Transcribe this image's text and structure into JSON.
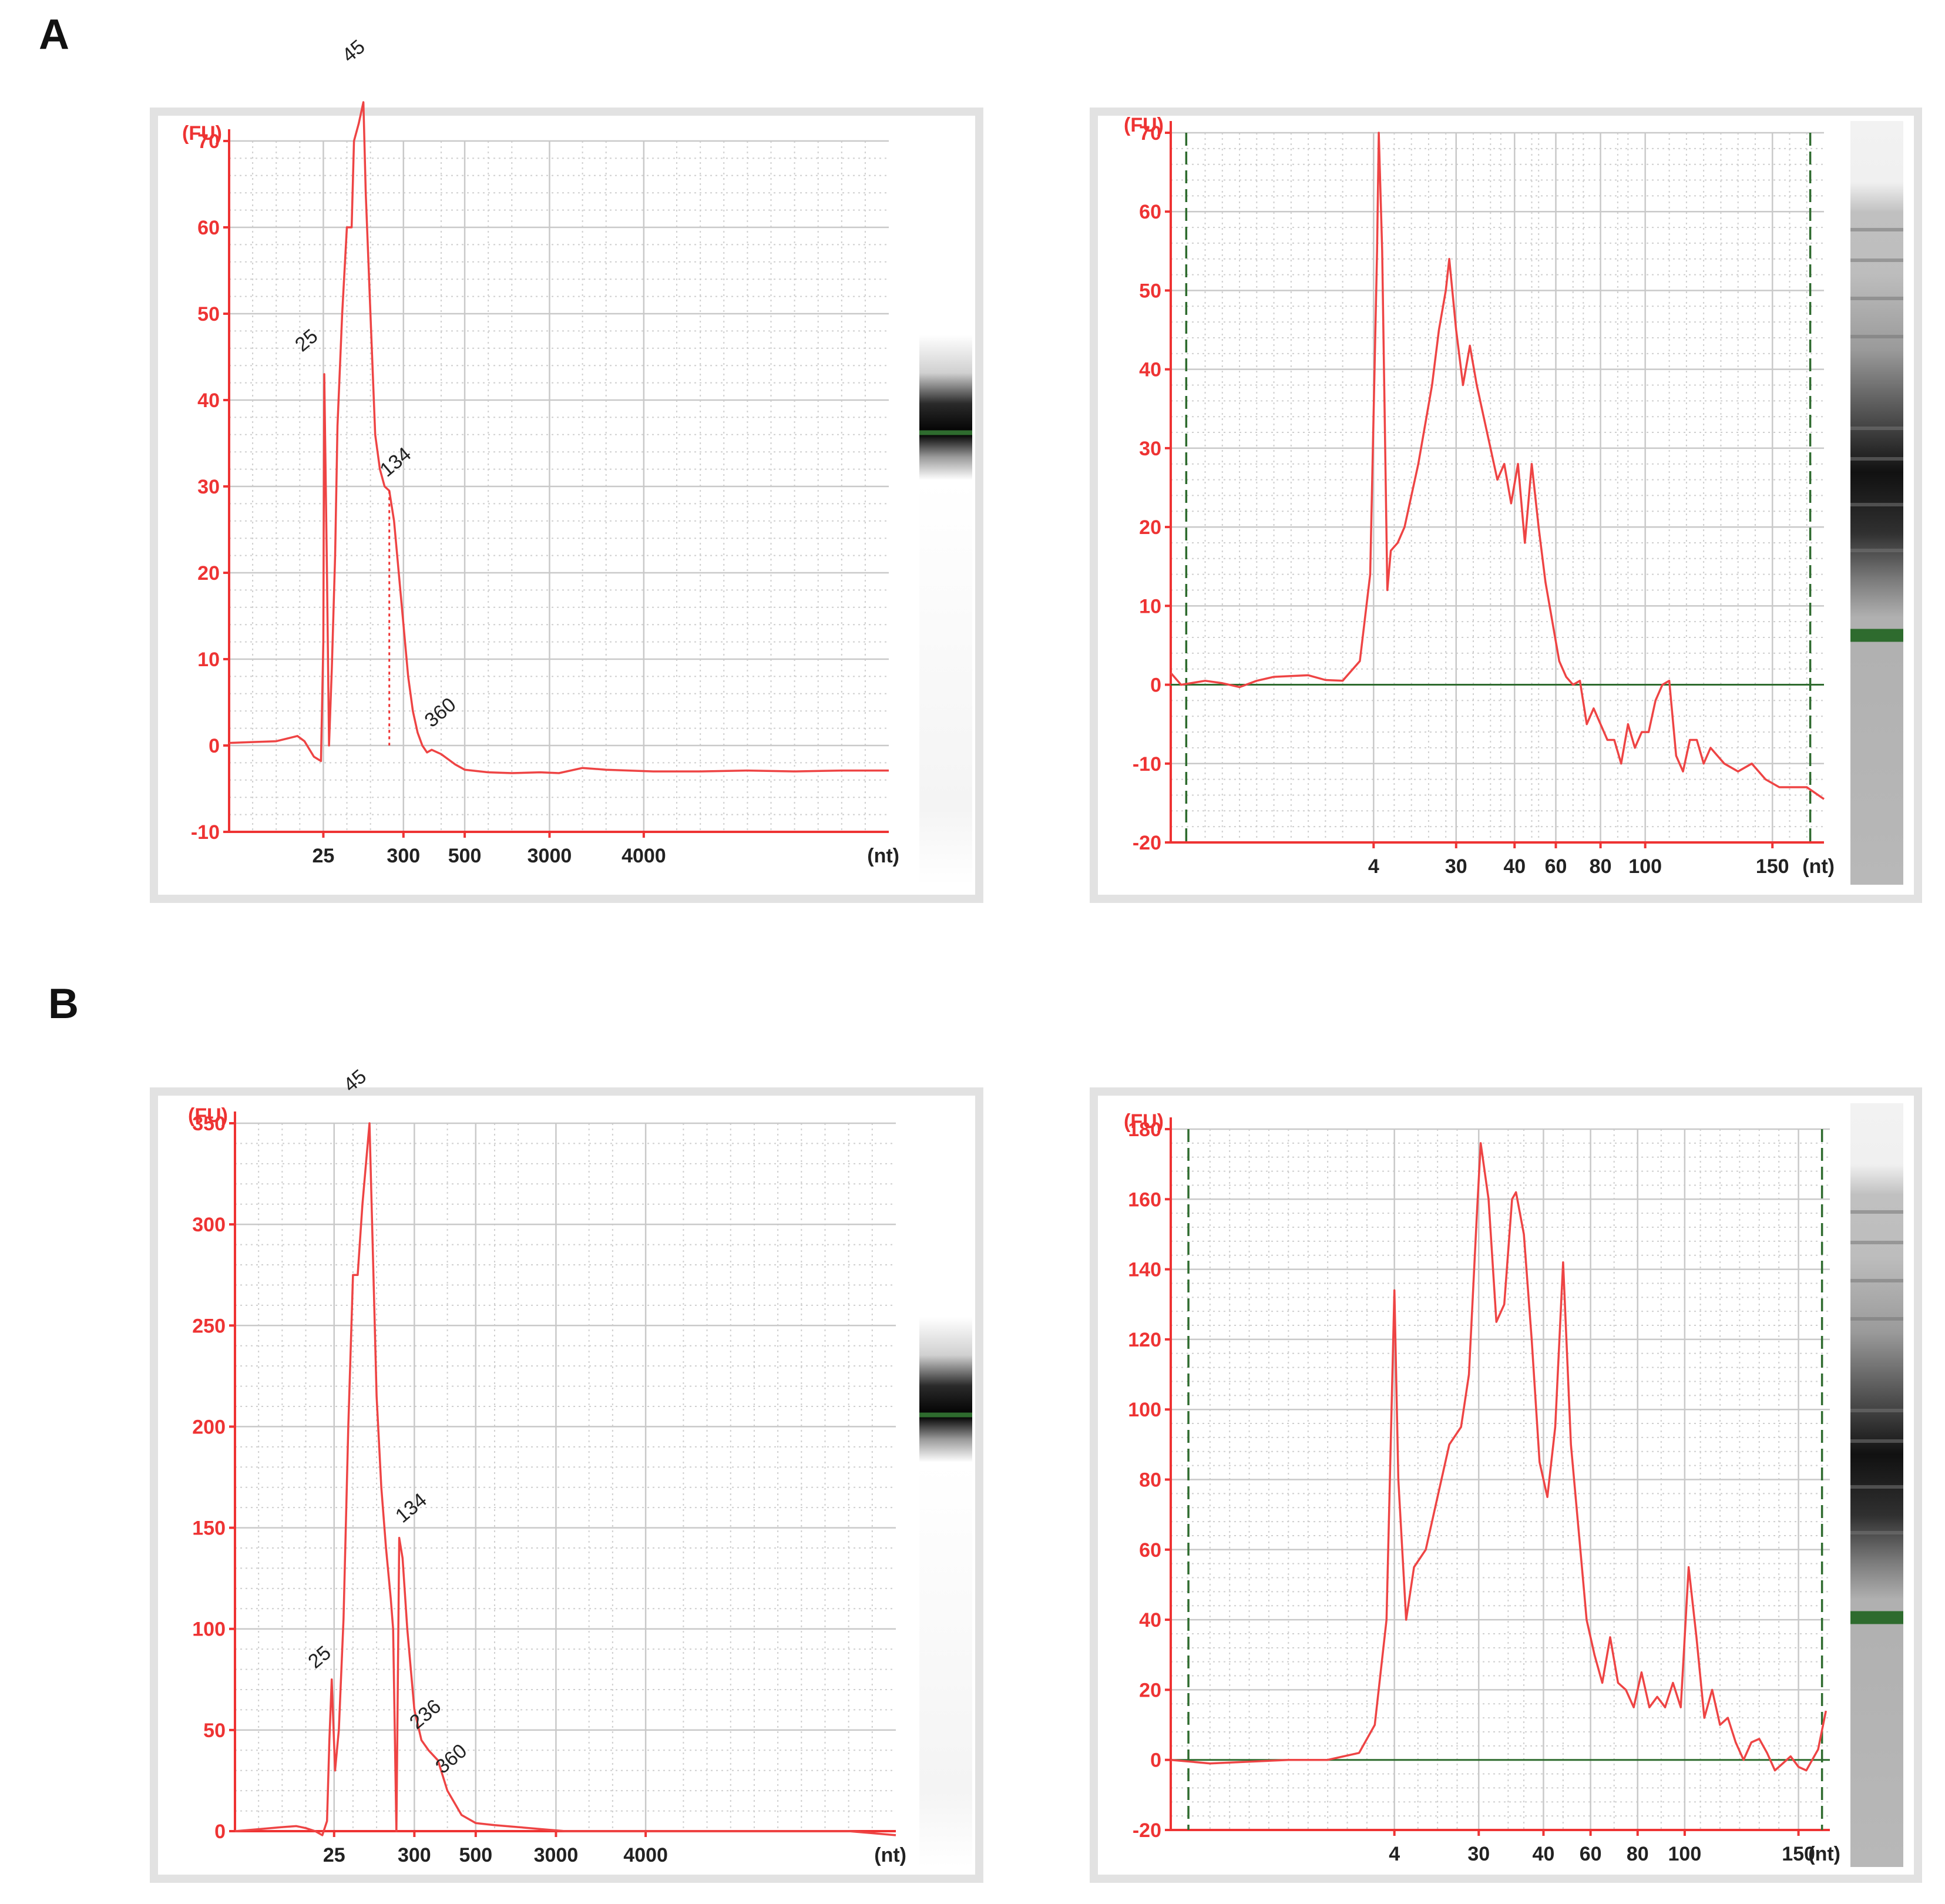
{
  "panel_labels": [
    "A",
    "B"
  ],
  "colors": {
    "trace": "#ee4444",
    "axis": "#ee3333",
    "marker": "#2e6b2e",
    "grid": "#c9c9c9"
  },
  "chart_data": [
    {
      "type": "line",
      "panel": "A",
      "ylabel": "(FU)",
      "xunit": "(nt)",
      "ylim": [
        -10,
        70
      ],
      "yticks": [
        -10,
        0,
        10,
        20,
        30,
        40,
        50,
        60,
        70
      ],
      "xticks": [
        "25",
        "300",
        "500",
        "3000",
        "4000"
      ],
      "grid": true,
      "series": [
        {
          "values": [
            [
              0,
              0.3
            ],
            [
              0.5,
              0.4
            ],
            [
              1,
              0.5
            ],
            [
              1.3,
              0.9
            ],
            [
              1.45,
              1.1
            ],
            [
              1.6,
              0.5
            ],
            [
              1.8,
              -1.3
            ],
            [
              1.95,
              -1.8
            ],
            [
              2,
              12
            ],
            [
              2.02,
              43
            ],
            [
              2.08,
              19
            ],
            [
              2.12,
              0
            ],
            [
              2.18,
              9
            ],
            [
              2.25,
              22
            ],
            [
              2.3,
              37
            ],
            [
              2.4,
              50
            ],
            [
              2.5,
              60
            ],
            [
              2.6,
              60
            ],
            [
              2.65,
              70
            ],
            [
              2.75,
              72
            ],
            [
              2.85,
              74.5
            ],
            [
              2.9,
              64
            ],
            [
              3,
              50
            ],
            [
              3.1,
              36
            ],
            [
              3.2,
              32
            ],
            [
              3.3,
              30
            ],
            [
              3.4,
              29.5
            ],
            [
              3.5,
              26
            ],
            [
              3.6,
              20
            ],
            [
              3.7,
              14
            ],
            [
              3.8,
              8
            ],
            [
              3.9,
              4
            ],
            [
              4,
              1.5
            ],
            [
              4.1,
              0
            ],
            [
              4.2,
              -0.8
            ],
            [
              4.3,
              -0.5
            ],
            [
              4.5,
              -1
            ],
            [
              4.8,
              -2.2
            ],
            [
              5,
              -2.8
            ],
            [
              5.5,
              -3.1
            ],
            [
              6,
              -3.2
            ],
            [
              6.6,
              -3.1
            ],
            [
              7,
              -3.2
            ],
            [
              7.5,
              -2.6
            ],
            [
              8,
              -2.8
            ],
            [
              9,
              -3
            ],
            [
              10,
              -3
            ],
            [
              11,
              -2.9
            ],
            [
              12,
              -3
            ],
            [
              13,
              -2.9
            ],
            [
              14,
              -2.9
            ]
          ]
        }
      ],
      "peak_labels": [
        "25",
        "45",
        "134",
        "360"
      ]
    },
    {
      "type": "line",
      "panel": "A",
      "ylabel": "(FU)",
      "xunit": "(nt)",
      "ylim": [
        -20,
        70
      ],
      "yticks": [
        -20,
        -10,
        0,
        10,
        20,
        30,
        40,
        50,
        60,
        70
      ],
      "xticks": [
        "4",
        "30",
        "40",
        "60",
        "80",
        "100",
        "150"
      ],
      "grid": true,
      "series": [
        {
          "values": [
            [
              0,
              1.5
            ],
            [
              0.3,
              0
            ],
            [
              1,
              0.5
            ],
            [
              1.5,
              0.2
            ],
            [
              2,
              -0.3
            ],
            [
              2.5,
              0.5
            ],
            [
              3,
              1
            ],
            [
              4,
              1.2
            ],
            [
              4.5,
              0.6
            ],
            [
              5,
              0.5
            ],
            [
              5.5,
              3
            ],
            [
              5.8,
              14
            ],
            [
              6,
              55
            ],
            [
              6.05,
              70
            ],
            [
              6.15,
              55
            ],
            [
              6.3,
              12
            ],
            [
              6.4,
              17
            ],
            [
              6.6,
              18
            ],
            [
              6.8,
              20
            ],
            [
              7,
              24
            ],
            [
              7.2,
              28
            ],
            [
              7.4,
              33
            ],
            [
              7.6,
              38
            ],
            [
              7.8,
              45
            ],
            [
              8,
              50
            ],
            [
              8.1,
              54
            ],
            [
              8.3,
              45
            ],
            [
              8.5,
              38
            ],
            [
              8.7,
              43
            ],
            [
              8.9,
              38
            ],
            [
              9.1,
              34
            ],
            [
              9.3,
              30
            ],
            [
              9.5,
              26
            ],
            [
              9.7,
              28
            ],
            [
              9.9,
              23
            ],
            [
              10.1,
              28
            ],
            [
              10.3,
              18
            ],
            [
              10.5,
              28
            ],
            [
              10.7,
              20
            ],
            [
              10.9,
              13
            ],
            [
              11.1,
              8
            ],
            [
              11.3,
              3
            ],
            [
              11.5,
              1
            ],
            [
              11.7,
              0
            ],
            [
              11.9,
              0.5
            ],
            [
              12.1,
              -5
            ],
            [
              12.3,
              -3
            ],
            [
              12.5,
              -5
            ],
            [
              12.7,
              -7
            ],
            [
              12.9,
              -7
            ],
            [
              13.1,
              -10
            ],
            [
              13.3,
              -5
            ],
            [
              13.5,
              -8
            ],
            [
              13.7,
              -6
            ],
            [
              13.9,
              -6
            ],
            [
              14.1,
              -2
            ],
            [
              14.3,
              0
            ],
            [
              14.5,
              0.5
            ],
            [
              14.7,
              -9
            ],
            [
              14.9,
              -11
            ],
            [
              15.1,
              -7
            ],
            [
              15.3,
              -7
            ],
            [
              15.5,
              -10
            ],
            [
              15.7,
              -8
            ],
            [
              15.9,
              -9
            ],
            [
              16.1,
              -10
            ],
            [
              16.5,
              -11
            ],
            [
              16.9,
              -10
            ],
            [
              17.3,
              -12
            ],
            [
              17.7,
              -13
            ],
            [
              18.1,
              -13
            ],
            [
              18.5,
              -13
            ],
            [
              19,
              -14.5
            ]
          ]
        }
      ]
    },
    {
      "type": "line",
      "panel": "B",
      "ylabel": "(FU)",
      "xunit": "(nt)",
      "ylim": [
        0,
        350
      ],
      "yticks": [
        0,
        50,
        100,
        150,
        200,
        250,
        300,
        350
      ],
      "xticks": [
        "25",
        "300",
        "500",
        "3000",
        "4000"
      ],
      "grid": true,
      "series": [
        {
          "values": [
            [
              0,
              0
            ],
            [
              0.5,
              1
            ],
            [
              1,
              2
            ],
            [
              1.3,
              2.5
            ],
            [
              1.5,
              1.5
            ],
            [
              1.7,
              0
            ],
            [
              1.85,
              -2
            ],
            [
              1.95,
              5
            ],
            [
              2,
              45
            ],
            [
              2.05,
              75
            ],
            [
              2.12,
              30
            ],
            [
              2.2,
              50
            ],
            [
              2.3,
              105
            ],
            [
              2.4,
              200
            ],
            [
              2.5,
              275
            ],
            [
              2.6,
              275
            ],
            [
              2.7,
              310
            ],
            [
              2.85,
              350
            ],
            [
              3,
              215
            ],
            [
              3.1,
              170
            ],
            [
              3.2,
              140
            ],
            [
              3.3,
              115
            ],
            [
              3.35,
              100
            ],
            [
              3.42,
              0
            ],
            [
              3.48,
              145
            ],
            [
              3.55,
              135
            ],
            [
              3.65,
              100
            ],
            [
              3.8,
              60
            ],
            [
              3.95,
              45
            ],
            [
              4.1,
              40
            ],
            [
              4.3,
              35
            ],
            [
              4.5,
              20
            ],
            [
              4.8,
              8
            ],
            [
              5.1,
              4
            ],
            [
              5.5,
              3
            ],
            [
              6,
              2
            ],
            [
              6.5,
              1
            ],
            [
              7,
              0
            ],
            [
              8,
              0
            ],
            [
              9,
              0
            ],
            [
              10,
              0
            ],
            [
              11,
              0
            ],
            [
              12,
              0
            ],
            [
              13,
              0
            ],
            [
              14,
              -2
            ]
          ]
        }
      ],
      "peak_labels": [
        "25",
        "45",
        "134",
        "236",
        "360"
      ]
    },
    {
      "type": "line",
      "panel": "B",
      "ylabel": "(FU)",
      "xunit": "(nt)",
      "ylim": [
        -20,
        180
      ],
      "yticks": [
        -20,
        0,
        20,
        40,
        60,
        80,
        100,
        120,
        140,
        160,
        180
      ],
      "xticks": [
        "4",
        "30",
        "40",
        "60",
        "80",
        "100",
        "150"
      ],
      "grid": true,
      "series": [
        {
          "values": [
            [
              0,
              0
            ],
            [
              1,
              -1
            ],
            [
              2,
              -0.5
            ],
            [
              3,
              0
            ],
            [
              4,
              0
            ],
            [
              4.8,
              2
            ],
            [
              5.2,
              10
            ],
            [
              5.5,
              40
            ],
            [
              5.7,
              134
            ],
            [
              5.8,
              80
            ],
            [
              6,
              40
            ],
            [
              6.2,
              55
            ],
            [
              6.5,
              60
            ],
            [
              6.8,
              75
            ],
            [
              7.1,
              90
            ],
            [
              7.4,
              95
            ],
            [
              7.6,
              110
            ],
            [
              7.8,
              155
            ],
            [
              7.9,
              176
            ],
            [
              8.1,
              160
            ],
            [
              8.3,
              125
            ],
            [
              8.5,
              130
            ],
            [
              8.7,
              160
            ],
            [
              8.8,
              162
            ],
            [
              9,
              150
            ],
            [
              9.2,
              120
            ],
            [
              9.4,
              85
            ],
            [
              9.6,
              75
            ],
            [
              9.8,
              95
            ],
            [
              10,
              142
            ],
            [
              10.2,
              90
            ],
            [
              10.4,
              65
            ],
            [
              10.6,
              40
            ],
            [
              10.8,
              30
            ],
            [
              11,
              22
            ],
            [
              11.2,
              35
            ],
            [
              11.4,
              22
            ],
            [
              11.6,
              20
            ],
            [
              11.8,
              15
            ],
            [
              12,
              25
            ],
            [
              12.2,
              15
            ],
            [
              12.4,
              18
            ],
            [
              12.6,
              15
            ],
            [
              12.8,
              22
            ],
            [
              13,
              15
            ],
            [
              13.2,
              55
            ],
            [
              13.4,
              35
            ],
            [
              13.6,
              12
            ],
            [
              13.8,
              20
            ],
            [
              14,
              10
            ],
            [
              14.2,
              12
            ],
            [
              14.4,
              5
            ],
            [
              14.6,
              0
            ],
            [
              14.8,
              5
            ],
            [
              15,
              6
            ],
            [
              15.2,
              2
            ],
            [
              15.4,
              -3
            ],
            [
              15.6,
              -1
            ],
            [
              15.8,
              1
            ],
            [
              16,
              -2
            ],
            [
              16.2,
              -3
            ],
            [
              16.5,
              3
            ],
            [
              16.7,
              14
            ]
          ]
        }
      ]
    }
  ]
}
